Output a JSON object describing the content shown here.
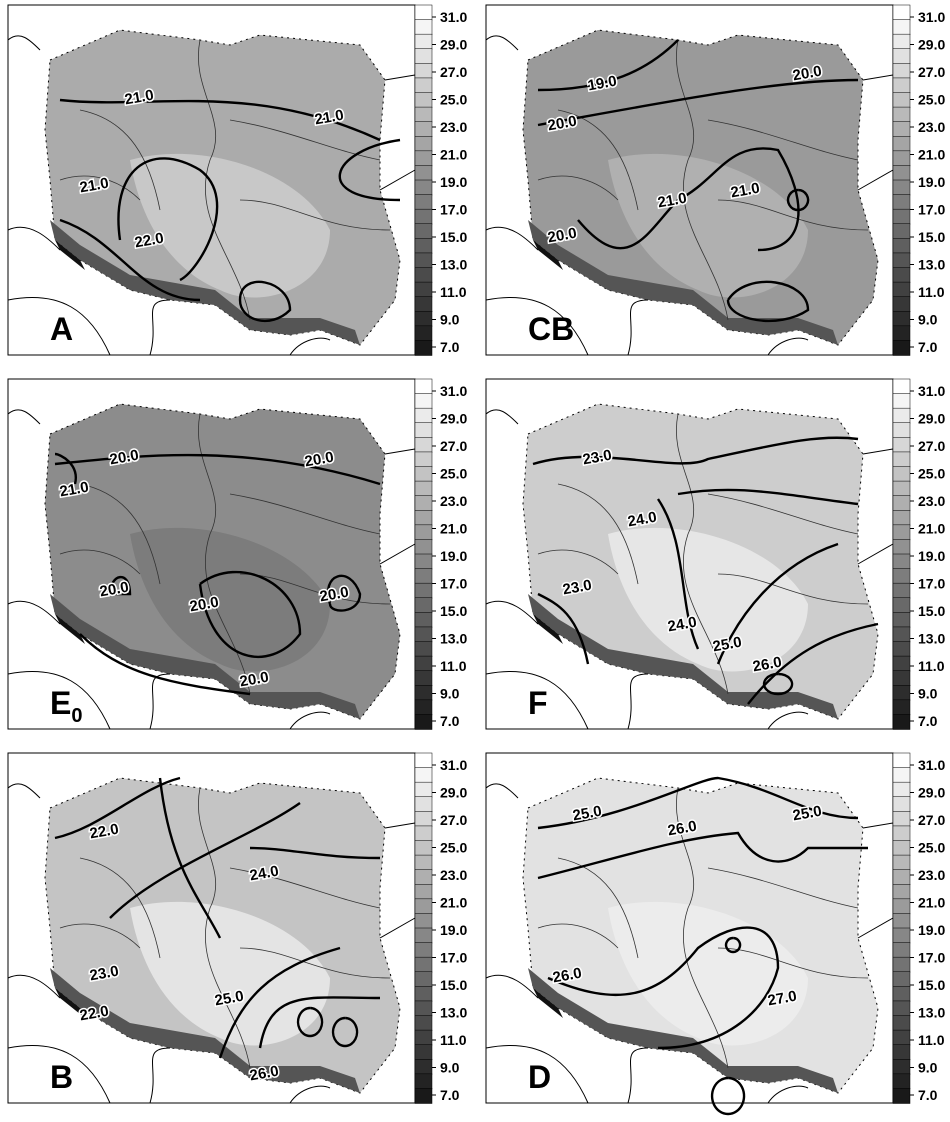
{
  "legend": {
    "labels": [
      "31.0",
      "29.0",
      "27.0",
      "25.0",
      "23.0",
      "21.0",
      "19.0",
      "17.0",
      "15.0",
      "13.0",
      "11.0",
      "9.0",
      "7.0"
    ]
  },
  "panels": [
    {
      "label": "A",
      "contour_labels": [
        "21.0",
        "21.0",
        "21.0",
        "22.0"
      ]
    },
    {
      "label": "CB",
      "contour_labels": [
        "19.0",
        "20.0",
        "20.0",
        "20.0",
        "21.0",
        "21.0"
      ]
    },
    {
      "label": "E",
      "label_sub": "0",
      "contour_labels": [
        "20.0",
        "20.0",
        "21.0",
        "20.0",
        "20.0",
        "20.0",
        "20.0"
      ]
    },
    {
      "label": "F",
      "contour_labels": [
        "23.0",
        "24.0",
        "23.0",
        "24.0",
        "25.0",
        "26.0"
      ]
    },
    {
      "label": "B",
      "contour_labels": [
        "22.0",
        "24.0",
        "23.0",
        "22.0",
        "25.0",
        "26.0"
      ]
    },
    {
      "label": "D",
      "contour_labels": [
        "25.0",
        "25.0",
        "26.0",
        "26.0",
        "27.0"
      ]
    }
  ]
}
